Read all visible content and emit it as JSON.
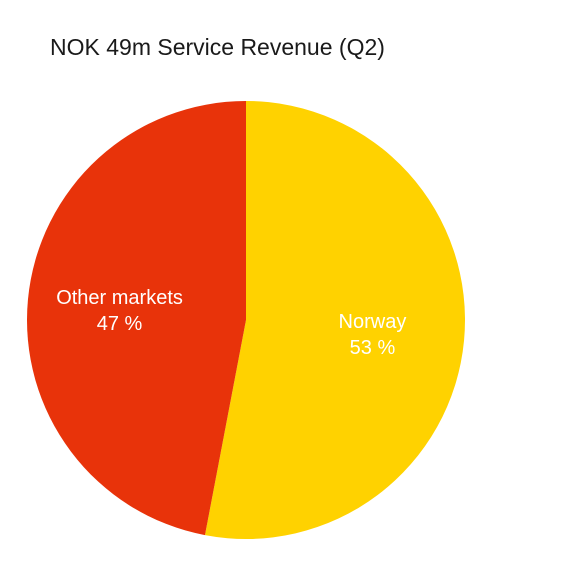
{
  "chart_data": {
    "type": "pie",
    "title": "NOK 49m Service Revenue (Q2)",
    "start_angle_deg": 0,
    "direction": "clockwise",
    "slices": [
      {
        "label": "Norway",
        "value": 53,
        "value_label": "53 %",
        "color": "#FFD200"
      },
      {
        "label": "Other markets",
        "value": 47,
        "value_label": "47 %",
        "color": "#E8330A"
      }
    ]
  }
}
